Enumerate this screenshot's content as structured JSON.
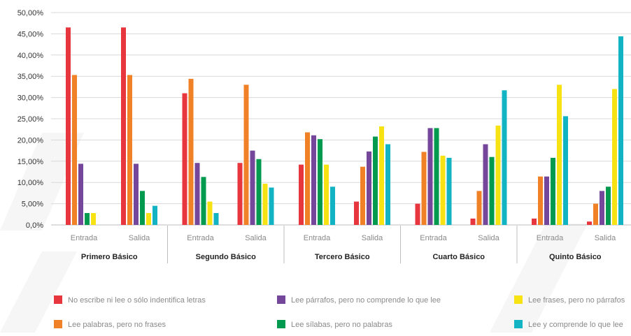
{
  "chart_data": {
    "type": "bar",
    "y_tick_labels": [
      "0,0%",
      "5,00%",
      "10,00%",
      "15,00%",
      "20,00%",
      "25,00%",
      "30,00%",
      "35,00%",
      "40,00%",
      "45,00%",
      "50,00%"
    ],
    "y_ticks": [
      0,
      5,
      10,
      15,
      20,
      25,
      30,
      35,
      40,
      45,
      50
    ],
    "ylim": [
      0,
      50
    ],
    "grid": true,
    "legend_position": "bottom",
    "groups": [
      {
        "label": "Primero Básico",
        "subgroups": [
          {
            "label": "Entrada",
            "values": [
              46.5,
              35.3,
              14.4,
              2.8,
              2.8,
              0
            ]
          },
          {
            "label": "Salida",
            "values": [
              46.5,
              35.3,
              14.4,
              8.0,
              2.8,
              4.5
            ]
          }
        ]
      },
      {
        "label": "Segundo Básico",
        "subgroups": [
          {
            "label": "Entrada",
            "values": [
              31.0,
              34.4,
              14.6,
              11.3,
              5.5,
              2.8
            ]
          },
          {
            "label": "Salida",
            "values": [
              14.6,
              33.0,
              17.5,
              15.5,
              9.7,
              8.8
            ]
          }
        ]
      },
      {
        "label": "Tercero Básico",
        "subgroups": [
          {
            "label": "Entrada",
            "values": [
              14.2,
              21.8,
              21.1,
              20.2,
              14.2,
              9.0
            ]
          },
          {
            "label": "Salida",
            "values": [
              5.5,
              13.7,
              17.3,
              20.8,
              23.2,
              19.0
            ]
          }
        ]
      },
      {
        "label": "Cuarto Básico",
        "subgroups": [
          {
            "label": "Entrada",
            "values": [
              5.0,
              17.2,
              22.8,
              22.8,
              16.3,
              15.8
            ]
          },
          {
            "label": "Salida",
            "values": [
              1.5,
              8.0,
              19.0,
              16.0,
              23.4,
              31.7
            ]
          }
        ]
      },
      {
        "label": "Quinto Básico",
        "subgroups": [
          {
            "label": "Entrada",
            "values": [
              1.5,
              11.4,
              11.4,
              15.8,
              33.0,
              25.6
            ]
          },
          {
            "label": "Salida",
            "values": [
              0.8,
              5.0,
              8.0,
              9.0,
              32.0,
              44.4
            ]
          }
        ]
      }
    ],
    "series": [
      {
        "name": "No escribe ni lee o sólo indentifica letras",
        "color": "#e8363f"
      },
      {
        "name": "Lee palabras, pero no frases",
        "color": "#f08127"
      },
      {
        "name": "Lee párrafos, pero no comprende lo que lee",
        "color": "#74479b"
      },
      {
        "name": "Lee sílabas, pero no palabras",
        "color": "#019a4f"
      },
      {
        "name": "Lee frases, pero no párrafos",
        "color": "#f7e314"
      },
      {
        "name": "Lee y comprende lo que lee",
        "color": "#12b3c3"
      }
    ]
  }
}
